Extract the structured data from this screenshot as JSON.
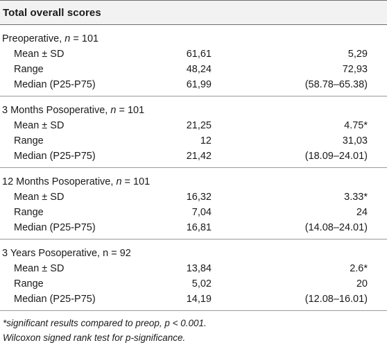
{
  "header": {
    "title": "Total overall scores"
  },
  "groups": [
    {
      "title_prefix": "Preoperative, ",
      "title_n": "n",
      "title_suffix": " = 101",
      "rows": [
        {
          "label": "Mean ± SD",
          "v1": "61,61",
          "v2": "5,29"
        },
        {
          "label": "Range",
          "v1": "48,24",
          "v2": "72,93"
        },
        {
          "label": "Median (P25-P75)",
          "v1": "61,99",
          "v2": "(58.78–65.38)"
        }
      ]
    },
    {
      "title_prefix": "3 Months Posoperative, ",
      "title_n": "n",
      "title_suffix": " = 101",
      "rows": [
        {
          "label": "Mean ± SD",
          "v1": "21,25",
          "v2": "4.75*"
        },
        {
          "label": "Range",
          "v1": "12",
          "v2": "31,03"
        },
        {
          "label": "Median (P25-P75)",
          "v1": "21,42",
          "v2": "(18.09–24.01)"
        }
      ]
    },
    {
      "title_prefix": "12 Months Posoperative, ",
      "title_n": "n",
      "title_suffix": " = 101",
      "rows": [
        {
          "label": "Mean ± SD",
          "v1": "16,32",
          "v2": "3.33*"
        },
        {
          "label": "Range",
          "v1": "7,04",
          "v2": "24"
        },
        {
          "label": "Median (P25-P75)",
          "v1": "16,81",
          "v2": "(14.08–24.01)"
        }
      ]
    },
    {
      "title_prefix": "3 Years Posoperative, n = 92",
      "title_n": "",
      "title_suffix": "",
      "rows": [
        {
          "label": "Mean ± SD",
          "v1": "13,84",
          "v2": "2.6*"
        },
        {
          "label": "Range",
          "v1": "5,02",
          "v2": "20"
        },
        {
          "label": "Median (P25-P75)",
          "v1": "14,19",
          "v2": "(12.08–16.01)"
        }
      ]
    }
  ],
  "footnotes": {
    "line1": "*significant results compared to preop, p < 0.001.",
    "line2": "Wilcoxon signed rank test for p-significance."
  }
}
